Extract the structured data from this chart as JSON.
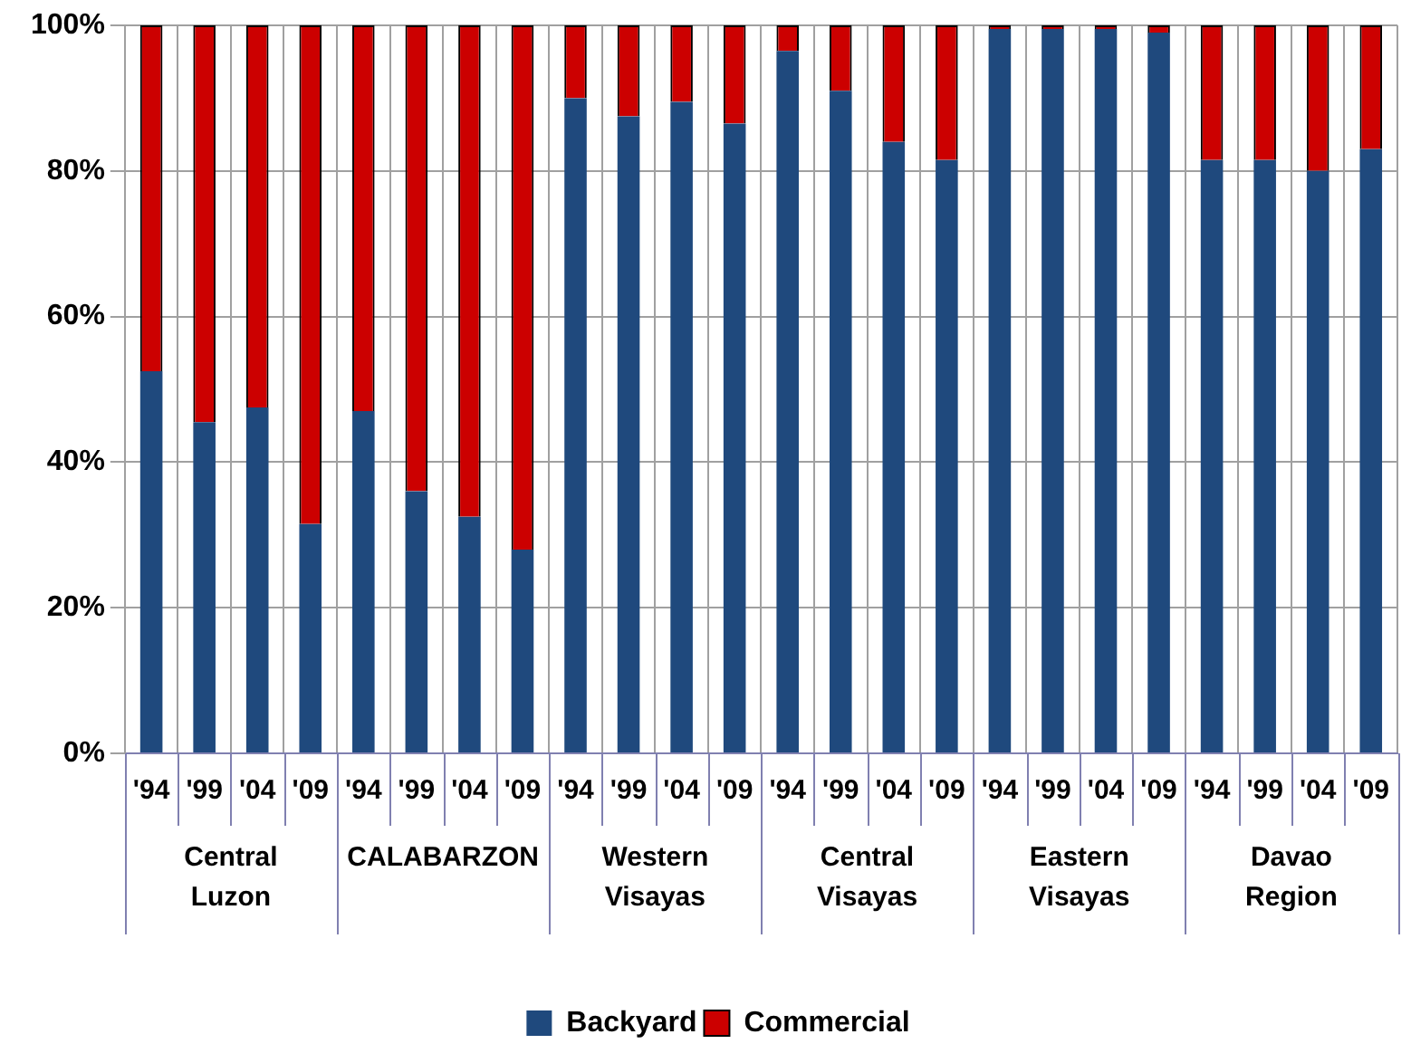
{
  "chart_data": {
    "type": "bar",
    "stacked": true,
    "categories": [
      "'94",
      "'99",
      "'04",
      "'09",
      "'94",
      "'99",
      "'04",
      "'09",
      "'94",
      "'99",
      "'04",
      "'09",
      "'94",
      "'99",
      "'04",
      "'09",
      "'94",
      "'99",
      "'04",
      "'09",
      "'94",
      "'99",
      "'04",
      "'09"
    ],
    "series": [
      {
        "name": "Backyard",
        "color": "#1f497d",
        "values": [
          52.5,
          45.5,
          47.5,
          31.5,
          47,
          36,
          32.5,
          28,
          90,
          87.5,
          89.5,
          86.5,
          96.5,
          91,
          84,
          81.5,
          99.5,
          99.5,
          99.5,
          99,
          81.5,
          81.5,
          80,
          83
        ]
      },
      {
        "name": "Commercial",
        "color": "#cc0000",
        "values": [
          47.5,
          54.5,
          52.5,
          68.5,
          53,
          64,
          67.5,
          72,
          10,
          12.5,
          10.5,
          13.5,
          3.5,
          9,
          16,
          18.5,
          0.5,
          0.5,
          0.5,
          1,
          18.5,
          18.5,
          20,
          17
        ]
      }
    ],
    "annotations": [
      "Central Luzon",
      "CALABARZON",
      "Western Visayas",
      "Central Visayas",
      "Eastern Visayas",
      "Davao Region"
    ],
    "ylim": [
      0,
      100
    ],
    "yticks": [
      {
        "value": 0,
        "label": "0%"
      },
      {
        "value": 20,
        "label": "20%"
      },
      {
        "value": 40,
        "label": "40%"
      },
      {
        "value": 60,
        "label": "60%"
      },
      {
        "value": 80,
        "label": "80%"
      },
      {
        "value": 100,
        "label": "100%"
      }
    ],
    "grid": true,
    "legend": "bottom"
  }
}
